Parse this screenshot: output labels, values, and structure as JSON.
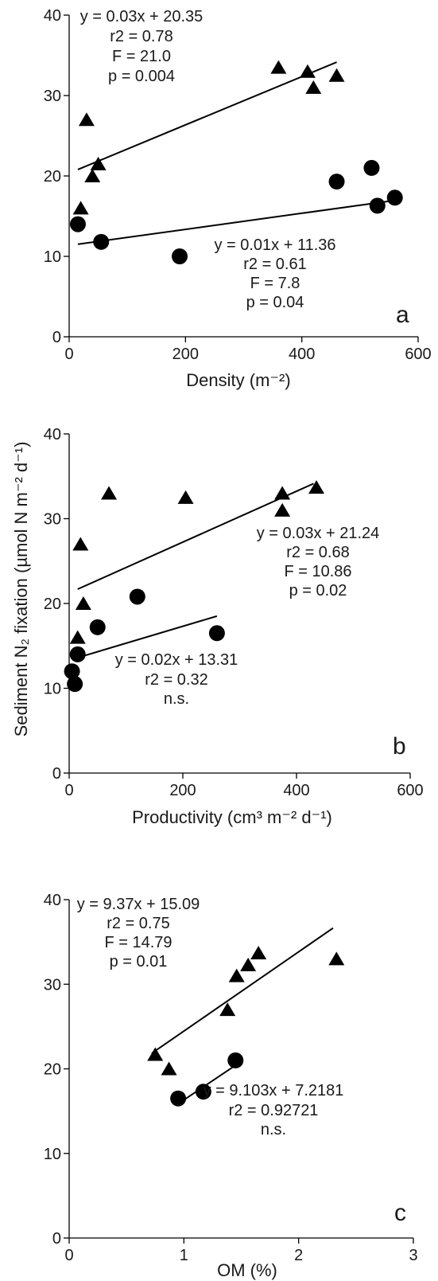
{
  "page": {
    "shared_ylabel": "Sediment N₂ fixation (µmol N m⁻² d⁻¹)"
  },
  "chart_data": [
    {
      "type": "scatter",
      "panel_label": "a",
      "xlabel": "Density (m⁻²)",
      "xlim": [
        0,
        600
      ],
      "ylim": [
        0,
        40
      ],
      "xticks": [
        0,
        200,
        400,
        600
      ],
      "yticks": [
        0,
        10,
        20,
        30,
        40
      ],
      "series": [
        {
          "marker": "triangle",
          "x": [
            20,
            30,
            40,
            50,
            360,
            410,
            420,
            460
          ],
          "y": [
            16,
            27,
            20,
            21.5,
            33.5,
            33,
            31,
            32.5
          ],
          "fit": {
            "slope": 0.03,
            "intercept": 20.35,
            "x_range": [
              15,
              460
            ]
          },
          "annotation": [
            "y = 0.03x + 20.35",
            "r2 = 0.78",
            "F = 21.0",
            "p = 0.004"
          ]
        },
        {
          "marker": "circle",
          "x": [
            15,
            55,
            190,
            460,
            520,
            530,
            560
          ],
          "y": [
            14,
            11.8,
            10,
            19.3,
            21,
            16.3,
            17.3
          ],
          "fit": {
            "slope": 0.01,
            "intercept": 11.36,
            "x_range": [
              15,
              565
            ]
          },
          "annotation": [
            "y = 0.01x + 11.36",
            "r2 = 0.61",
            "F = 7.8",
            "p = 0.04"
          ]
        }
      ]
    },
    {
      "type": "scatter",
      "panel_label": "b",
      "xlabel": "Productivity (cm³ m⁻² d⁻¹)",
      "xlim": [
        0,
        600
      ],
      "ylim": [
        0,
        40
      ],
      "xticks": [
        0,
        200,
        400,
        600
      ],
      "yticks": [
        0,
        10,
        20,
        30,
        40
      ],
      "series": [
        {
          "marker": "triangle",
          "x": [
            15,
            20,
            25,
            70,
            205,
            375,
            375,
            435
          ],
          "y": [
            16,
            27,
            20,
            33,
            32.5,
            33,
            31,
            33.7
          ],
          "fit": {
            "slope": 0.03,
            "intercept": 21.24,
            "x_range": [
              15,
              430
            ]
          },
          "annotation": [
            "y = 0.03x + 21.24",
            "r2 = 0.68",
            "F = 10.86",
            "p = 0.02"
          ]
        },
        {
          "marker": "circle",
          "x": [
            5,
            10,
            15,
            50,
            120,
            260
          ],
          "y": [
            12,
            10.5,
            14,
            17.2,
            20.8,
            16.5
          ],
          "fit": {
            "slope": 0.02,
            "intercept": 13.31,
            "x_range": [
              5,
              260
            ]
          },
          "annotation": [
            "y = 0.02x + 13.31",
            "r2 = 0.32",
            "n.s."
          ]
        }
      ]
    },
    {
      "type": "scatter",
      "panel_label": "c",
      "xlabel": "OM (%)",
      "xlim": [
        0,
        3
      ],
      "ylim": [
        0,
        40
      ],
      "xticks": [
        0,
        1,
        2,
        3
      ],
      "yticks": [
        0,
        10,
        20,
        30,
        40
      ],
      "series": [
        {
          "marker": "triangle",
          "x": [
            0.75,
            0.87,
            1.38,
            1.46,
            1.56,
            1.65,
            2.33
          ],
          "y": [
            21.7,
            20,
            27,
            31,
            32.3,
            33.7,
            33
          ],
          "fit": {
            "slope": 9.37,
            "intercept": 15.09,
            "x_range": [
              0.72,
              2.3
            ]
          },
          "annotation": [
            "y = 9.37x + 15.09",
            "r2 = 0.75",
            "F = 14.79",
            "p = 0.01"
          ]
        },
        {
          "marker": "circle",
          "x": [
            0.95,
            1.17,
            1.45
          ],
          "y": [
            16.5,
            17.3,
            21
          ],
          "fit": {
            "slope": 9.103,
            "intercept": 7.2181,
            "x_range": [
              0.95,
              1.45
            ]
          },
          "annotation": [
            "y = 9.103x + 7.2181",
            "r2 = 0.92721",
            "n.s."
          ]
        }
      ]
    }
  ]
}
